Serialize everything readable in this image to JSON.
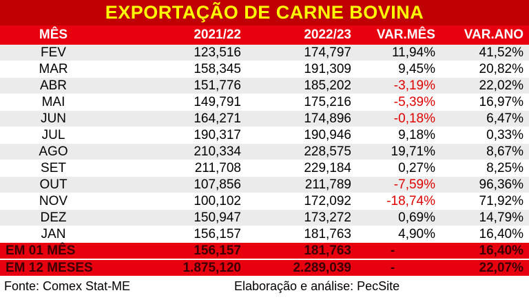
{
  "chart_data": {
    "type": "table",
    "title": "EXPORTAÇÃO DE CARNE BOVINA",
    "columns": [
      "MÊS",
      "2021/22",
      "2022/23",
      "VAR.MÊS",
      "VAR.ANO"
    ],
    "rows": [
      {
        "mes": "FEV",
        "y2122": "123,516",
        "y2223": "174,797",
        "var_mes": "11,94%",
        "var_ano": "41,52%",
        "neg": false
      },
      {
        "mes": "MAR",
        "y2122": "158,345",
        "y2223": "191,309",
        "var_mes": "9,45%",
        "var_ano": "20,82%",
        "neg": false
      },
      {
        "mes": "ABR",
        "y2122": "151,776",
        "y2223": "185,202",
        "var_mes": "-3,19%",
        "var_ano": "22,02%",
        "neg": true
      },
      {
        "mes": "MAI",
        "y2122": "149,791",
        "y2223": "175,216",
        "var_mes": "-5,39%",
        "var_ano": "16,97%",
        "neg": true
      },
      {
        "mes": "JUN",
        "y2122": "164,271",
        "y2223": "174,896",
        "var_mes": "-0,18%",
        "var_ano": "6,47%",
        "neg": true
      },
      {
        "mes": "JUL",
        "y2122": "190,317",
        "y2223": "190,946",
        "var_mes": "9,18%",
        "var_ano": "0,33%",
        "neg": false
      },
      {
        "mes": "AGO",
        "y2122": "210,334",
        "y2223": "228,575",
        "var_mes": "19,71%",
        "var_ano": "8,67%",
        "neg": false
      },
      {
        "mes": "SET",
        "y2122": "211,708",
        "y2223": "229,184",
        "var_mes": "0,27%",
        "var_ano": "8,25%",
        "neg": false
      },
      {
        "mes": "OUT",
        "y2122": "107,856",
        "y2223": "211,789",
        "var_mes": "-7,59%",
        "var_ano": "96,36%",
        "neg": true
      },
      {
        "mes": "NOV",
        "y2122": "100,102",
        "y2223": "172,092",
        "var_mes": "-18,74%",
        "var_ano": "71,92%",
        "neg": true
      },
      {
        "mes": "DEZ",
        "y2122": "150,947",
        "y2223": "173,272",
        "var_mes": "0,69%",
        "var_ano": "14,79%",
        "neg": false
      },
      {
        "mes": "JAN",
        "y2122": "156,157",
        "y2223": "181,763",
        "var_mes": "4,90%",
        "var_ano": "16,40%",
        "neg": false
      }
    ],
    "totals": [
      {
        "mes": "EM 01 MÊS",
        "y2122": "156,157",
        "y2223": "181,763",
        "var_mes": "-",
        "var_ano": "16,40%"
      },
      {
        "mes": "EM 12 MESES",
        "y2122": "1.875,120",
        "y2223": "2.289,039",
        "var_mes": "-",
        "var_ano": "22,07%"
      }
    ],
    "footer_source": "Fonte: Comex Stat-ME",
    "footer_credit": "Elaboração e análise: PecSite",
    "colors": {
      "title_bg": "#c00000",
      "title_text": "#ffff00",
      "header_bg": "#e8000f",
      "negative": "#e00000"
    }
  }
}
